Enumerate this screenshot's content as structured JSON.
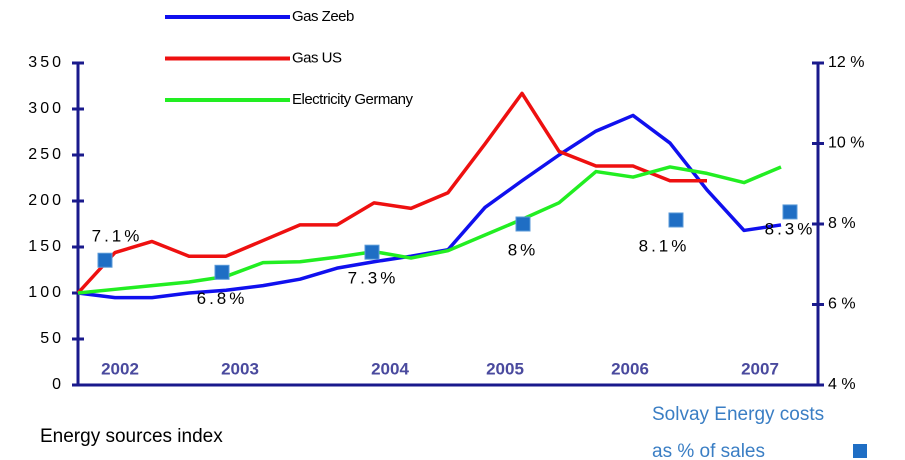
{
  "chart_data": {
    "type": "line",
    "x_labels": [
      "2002",
      "2003",
      "2004",
      "2005",
      "2006",
      "2007"
    ],
    "series": [
      {
        "name": "Gas Zeeb",
        "color": "#1010ee",
        "values": [
          100,
          95,
          95,
          100,
          103,
          108,
          115,
          127,
          134,
          140,
          147,
          193,
          222,
          250,
          276,
          293,
          263,
          212,
          168,
          174
        ]
      },
      {
        "name": "Gas US",
        "color": "#ee1010",
        "values": [
          100,
          144,
          156,
          140,
          140,
          157,
          174,
          174,
          198,
          192,
          209,
          262,
          317,
          254,
          238,
          238,
          222,
          222,
          null,
          null
        ]
      },
      {
        "name": "Electricity Germany",
        "color": "#22ee22",
        "values": [
          100,
          104,
          108,
          112,
          118,
          133,
          134,
          139,
          145,
          138,
          146,
          163,
          180,
          198,
          232,
          226,
          237,
          230,
          220,
          237
        ]
      }
    ],
    "markers": {
      "label_lines": [
        "Solvay Energy costs",
        "as % of sales"
      ],
      "color": "#1f6ec4",
      "axis": "y2",
      "values": [
        7.1,
        6.8,
        7.3,
        8,
        8.1,
        8.3
      ],
      "value_labels": [
        "7.1%",
        "6.8%",
        "7.3%",
        "8%",
        "8.1%",
        "8.3%"
      ]
    },
    "ylim": [
      0,
      350
    ],
    "yticks": [
      0,
      50,
      100,
      150,
      200,
      250,
      300,
      350
    ],
    "y2lim": [
      4,
      12
    ],
    "y2ticks": [
      {
        "value": 4,
        "label": "4 %"
      },
      {
        "value": 6,
        "label": "6 %"
      },
      {
        "value": 8,
        "label": "8 %"
      },
      {
        "value": 10,
        "label": "10 %"
      },
      {
        "value": 12,
        "label": "12 %"
      }
    ],
    "axis_label": "Energy sources index"
  }
}
